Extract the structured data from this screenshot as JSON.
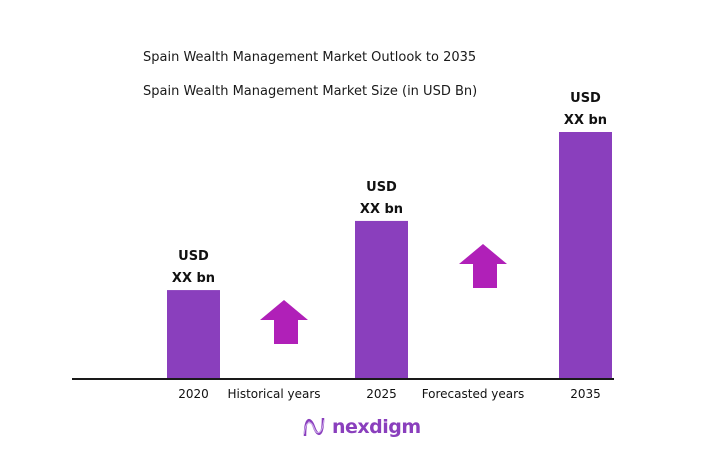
{
  "colors": {
    "bar": "#8a3fbd",
    "arrow": "#b020b8",
    "axis": "#1a1a1a",
    "brand": "#8a3fbd"
  },
  "brand": {
    "name": "nexdigm"
  },
  "chart_data": {
    "type": "bar",
    "title": "Spain Wealth Management Market Outlook to 2035",
    "subtitle": "Spain Wealth Management Market Size (in USD Bn)",
    "categories": [
      "2020",
      "2025",
      "2035"
    ],
    "values": [
      36,
      64,
      100
    ],
    "data_labels": [
      [
        "USD",
        "XX bn"
      ],
      [
        "USD",
        "XX bn"
      ],
      [
        "USD",
        "XX bn"
      ]
    ],
    "period_labels": [
      "Historical years",
      "Forecasted years"
    ],
    "annotations": [
      "up-arrow-icon",
      "up-arrow-icon"
    ],
    "grid": false
  }
}
